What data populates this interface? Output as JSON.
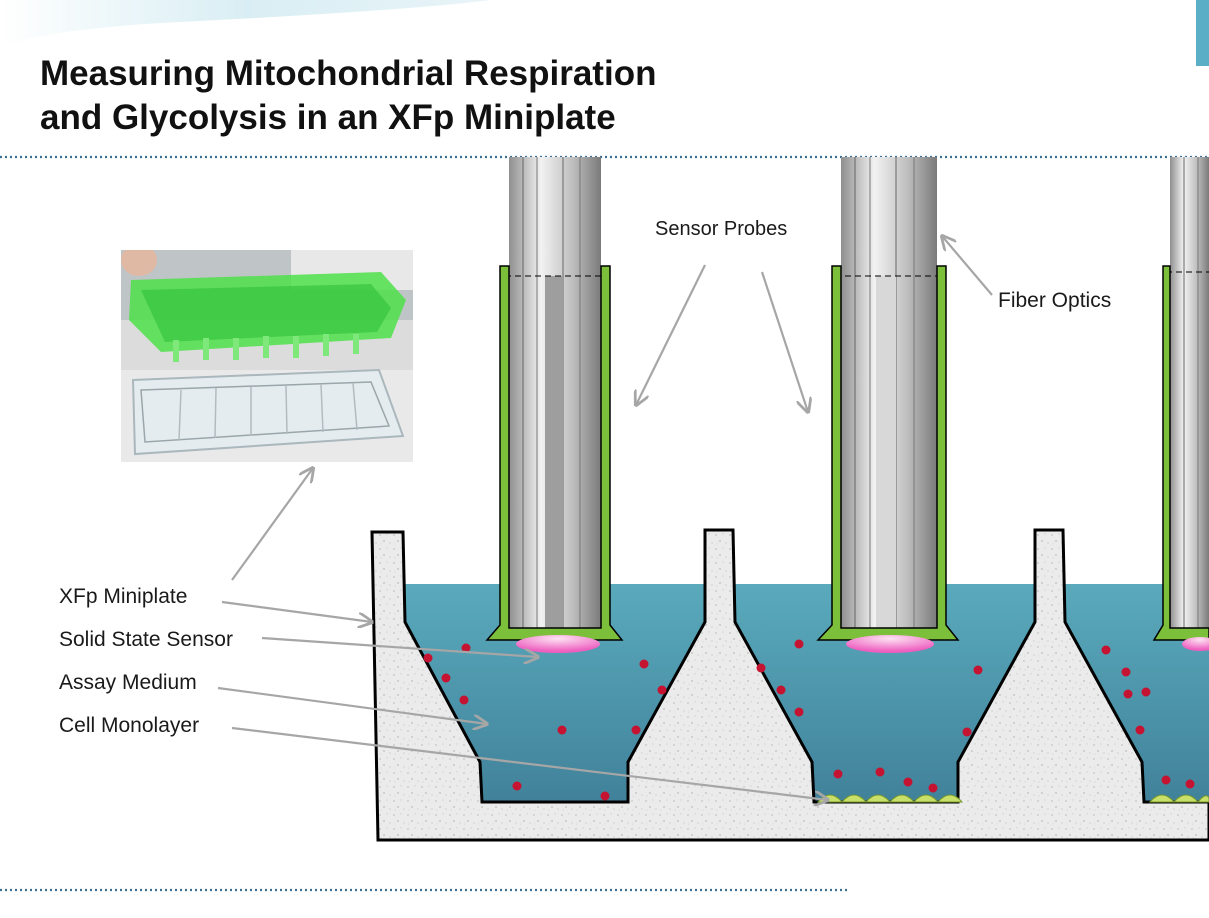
{
  "title": {
    "line1": "Measuring Mitochondrial Respiration",
    "line2": "and Glycolysis in an XFp Miniplate"
  },
  "labels": {
    "sensor_probes": "Sensor Probes",
    "fiber_optics": "Fiber Optics",
    "xfp_miniplate": "XFp Miniplate",
    "solid_state_sensor": "Solid State Sensor",
    "assay_medium": "Assay Medium",
    "cell_monolayer": "Cell Monolayer"
  },
  "colors": {
    "probe_sleeve": "#7cbf3a",
    "assay_medium_top": "#5aaabc",
    "assay_medium_bottom": "#3f7f98",
    "sensor_spot": "#f070c8",
    "cell": "#c8e06a",
    "particle": "#c41432",
    "plate_fill": "#e6e6e6",
    "arrow": "#a6a6a6",
    "dotted_rule": "#3a6f96",
    "banner": "#bfe0ea"
  },
  "photo": {
    "description_icon": "photo-icon"
  }
}
